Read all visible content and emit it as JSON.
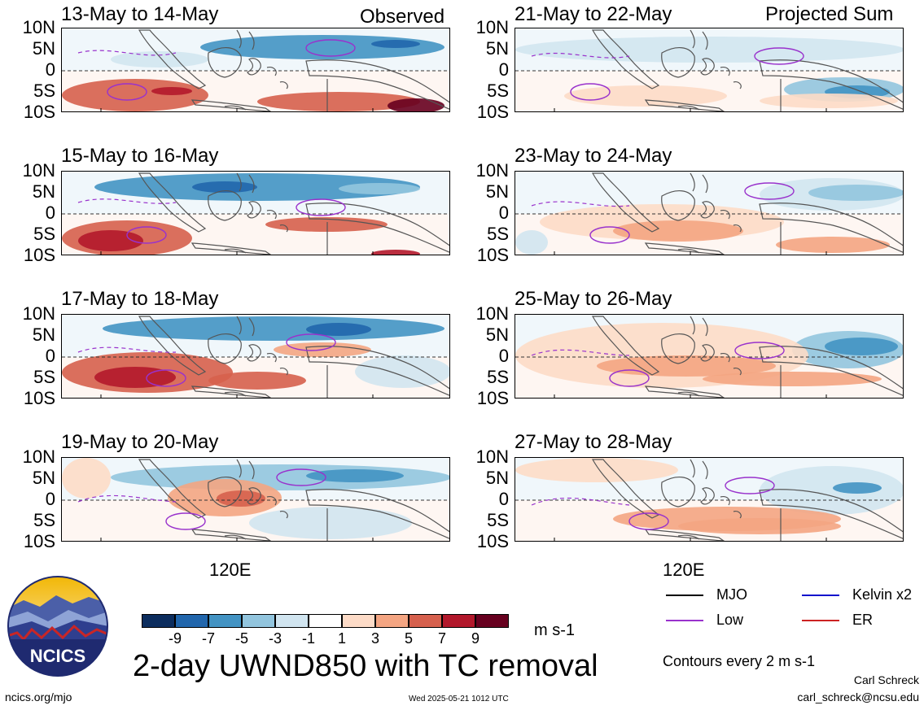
{
  "panels": [
    {
      "title": "13-May to 14-May",
      "corner": "Observed"
    },
    {
      "title": "21-May to 22-May",
      "corner": "Projected Sum"
    },
    {
      "title": "15-May to 16-May",
      "corner": ""
    },
    {
      "title": "23-May to 24-May",
      "corner": ""
    },
    {
      "title": "17-May to 18-May",
      "corner": ""
    },
    {
      "title": "25-May to 26-May",
      "corner": ""
    },
    {
      "title": "19-May to 20-May",
      "corner": ""
    },
    {
      "title": "27-May to 28-May",
      "corner": ""
    }
  ],
  "lat_labels": [
    "10N",
    "5N",
    "0",
    "5S",
    "10S"
  ],
  "lon_label": "120E",
  "colorbar": {
    "labels": [
      "-9",
      "-7",
      "-5",
      "-3",
      "-1",
      "1",
      "3",
      "5",
      "7",
      "9"
    ],
    "colors": [
      "#0c2d5e",
      "#2166ac",
      "#4393c3",
      "#92c5de",
      "#d1e5f0",
      "#ffffff",
      "#fddbc7",
      "#f4a582",
      "#d6604d",
      "#b2182b",
      "#67001f"
    ],
    "units": "m s-1"
  },
  "main_title": "2-day UWND850 with TC removal",
  "legend": [
    {
      "label": "MJO",
      "color": "#000000"
    },
    {
      "label": "Kelvin x2",
      "color": "#1010cc"
    },
    {
      "label": "Low",
      "color": "#9932cc"
    },
    {
      "label": "ER",
      "color": "#cc2222"
    }
  ],
  "contours_note": "Contours every 2 m s-1",
  "logo_text": "NCICS",
  "website": "ncics.org/mjo",
  "timestamp": "Wed 2025-05-21 1012 UTC",
  "author": "Carl Schreck",
  "email": "carl_schreck@ncsu.edu"
}
